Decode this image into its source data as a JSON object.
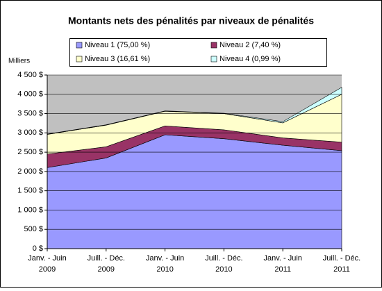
{
  "chart_data": {
    "type": "stacked-area",
    "title": "Montants nets des pénalités par niveaux de pénalités",
    "y_axis_label": "Milliers",
    "categories": [
      "Janv. - Juin\n2009",
      "Juill. - Déc.\n2009",
      "Janv. - Juin\n2010",
      "Juill. - Déc.\n2010",
      "Janv. - Juin\n2011",
      "Juill. - Déc.\n2011"
    ],
    "series": [
      {
        "name": "Niveau 1 (75,00 %)",
        "color": "#9999ff",
        "values": [
          2100,
          2350,
          2950,
          2850,
          2680,
          2540
        ]
      },
      {
        "name": "Niveau 2 (7,40 %)",
        "color": "#993366",
        "values": [
          350,
          290,
          230,
          230,
          190,
          220
        ]
      },
      {
        "name": "Niveau 3 (16,61 %)",
        "color": "#ffffcc",
        "values": [
          510,
          560,
          380,
          420,
          390,
          1240
        ]
      },
      {
        "name": "Niveau 4 (0,99 %)",
        "color": "#ccffff",
        "values": [
          10,
          10,
          10,
          10,
          30,
          180
        ]
      }
    ],
    "ylim": [
      0,
      4500
    ],
    "yticks": [
      {
        "value": 0,
        "label": "0 $"
      },
      {
        "value": 500,
        "label": "500 $"
      },
      {
        "value": 1000,
        "label": "1 000 $"
      },
      {
        "value": 1500,
        "label": "1 500 $"
      },
      {
        "value": 2000,
        "label": "2 000 $"
      },
      {
        "value": 2500,
        "label": "2 500 $"
      },
      {
        "value": 3000,
        "label": "3 000 $"
      },
      {
        "value": 3500,
        "label": "3 500 $"
      },
      {
        "value": 4000,
        "label": "4 000 $"
      },
      {
        "value": 4500,
        "label": "4 500 $"
      }
    ],
    "grid": true,
    "plot_background": "#c0c0c0",
    "legend": "top"
  }
}
